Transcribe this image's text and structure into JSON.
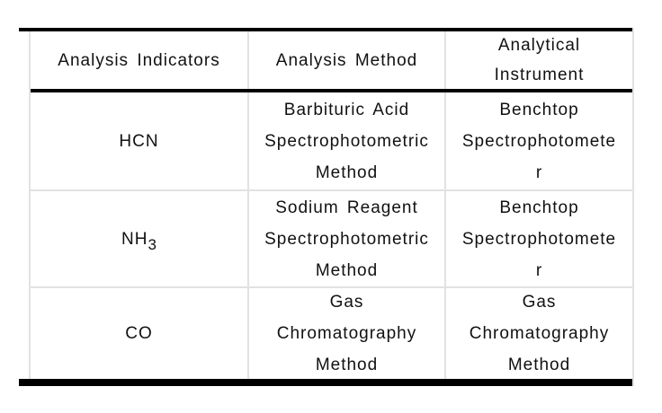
{
  "table": {
    "headers": [
      "Analysis Indicators",
      "Analysis Method",
      "Analytical\nInstrument"
    ],
    "rows": [
      {
        "indicator": "HCN",
        "method": "Barbituric Acid\nSpectrophotometric\nMethod",
        "instrument": "Benchtop\nSpectrophotomete\nr"
      },
      {
        "indicator_base": "NH",
        "indicator_sub": "3",
        "method": "Sodium Reagent\nSpectrophotometric\nMethod",
        "instrument": "Benchtop\nSpectrophotomete\nr"
      },
      {
        "indicator": "CO",
        "method": "Gas\nChromatography\nMethod",
        "instrument": "Gas\nChromatography\nMethod"
      }
    ]
  },
  "colors": {
    "rule_black": "#000000",
    "grid_gray": "#e2e2e2",
    "text": "#111111",
    "background": "#ffffff"
  }
}
